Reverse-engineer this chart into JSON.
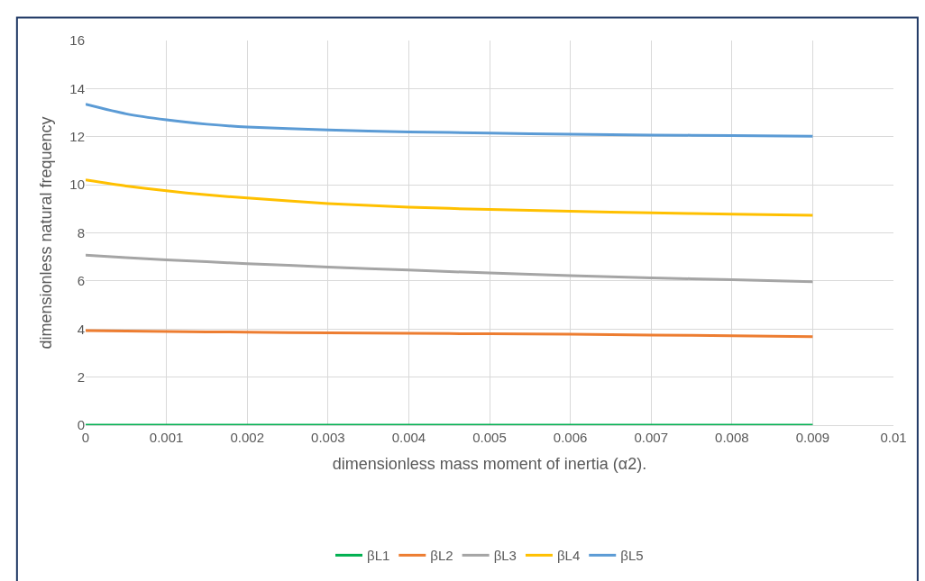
{
  "chart_data": {
    "type": "line",
    "xlabel": "dimensionless mass moment of inertia (α2).",
    "ylabel": "dimensionless natural frequency",
    "x": [
      0,
      0.0005,
      0.001,
      0.0015,
      0.002,
      0.003,
      0.004,
      0.005,
      0.006,
      0.007,
      0.008,
      0.009
    ],
    "series": [
      {
        "name": "βL1",
        "color": "#00b050",
        "values": [
          0,
          0,
          0,
          0,
          0,
          0,
          0,
          0,
          0,
          0,
          0,
          0
        ]
      },
      {
        "name": "βL2",
        "color": "#ed7d31",
        "values": [
          3.93,
          3.92,
          3.9,
          3.88,
          3.87,
          3.84,
          3.82,
          3.8,
          3.78,
          3.75,
          3.72,
          3.68
        ]
      },
      {
        "name": "βL3",
        "color": "#a5a5a5",
        "values": [
          7.07,
          6.97,
          6.88,
          6.8,
          6.72,
          6.58,
          6.45,
          6.33,
          6.22,
          6.13,
          6.05,
          5.97
        ]
      },
      {
        "name": "βL4",
        "color": "#ffc000",
        "values": [
          10.2,
          9.95,
          9.75,
          9.58,
          9.45,
          9.22,
          9.07,
          8.97,
          8.9,
          8.83,
          8.78,
          8.73
        ]
      },
      {
        "name": "βL5",
        "color": "#5b9bd5",
        "values": [
          13.35,
          12.95,
          12.7,
          12.52,
          12.4,
          12.28,
          12.2,
          12.15,
          12.1,
          12.07,
          12.05,
          12.02
        ]
      }
    ],
    "xlim": [
      0,
      0.01
    ],
    "xticks": [
      0,
      0.001,
      0.002,
      0.003,
      0.004,
      0.005,
      0.006,
      0.007,
      0.008,
      0.009,
      0.01
    ],
    "ylim": [
      0,
      16
    ],
    "yticks": [
      0,
      2,
      4,
      6,
      8,
      10,
      12,
      14,
      16
    ],
    "grid": true,
    "legend": "bottom",
    "marker": "none",
    "line_style": "solid"
  }
}
